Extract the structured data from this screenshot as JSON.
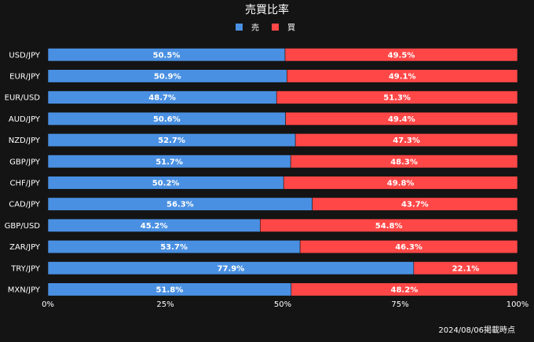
{
  "chart_data": {
    "type": "bar",
    "orientation": "horizontal",
    "stacked": true,
    "title": "売買比率",
    "categories": [
      "USD/JPY",
      "EUR/JPY",
      "EUR/USD",
      "AUD/JPY",
      "NZD/JPY",
      "GBP/JPY",
      "CHF/JPY",
      "CAD/JPY",
      "GBP/USD",
      "ZAR/JPY",
      "TRY/JPY",
      "MXN/JPY"
    ],
    "series": [
      {
        "name": "売",
        "color": "#4a90e2",
        "values": [
          50.5,
          50.9,
          48.7,
          50.6,
          52.7,
          51.7,
          50.2,
          56.3,
          45.2,
          53.7,
          77.9,
          51.8
        ],
        "labels": [
          "50.5%",
          "50.9%",
          "48.7%",
          "50.6%",
          "52.7%",
          "51.7%",
          "50.2%",
          "56.3%",
          "45.2%",
          "53.7%",
          "77.9%",
          "51.8%"
        ]
      },
      {
        "name": "買",
        "color": "#ff4747",
        "values": [
          49.5,
          49.1,
          51.3,
          49.4,
          47.3,
          48.3,
          49.8,
          43.7,
          54.8,
          46.3,
          22.1,
          48.2
        ],
        "labels": [
          "49.5%",
          "49.1%",
          "51.3%",
          "49.4%",
          "47.3%",
          "48.3%",
          "49.8%",
          "43.7%",
          "54.8%",
          "46.3%",
          "22.1%",
          "48.2%"
        ]
      }
    ],
    "xlim": [
      0,
      100
    ],
    "xticks": [
      0,
      25,
      50,
      75,
      100
    ],
    "xtick_labels": [
      "0%",
      "25%",
      "50%",
      "75%",
      "100%"
    ],
    "legend_position": "top-center",
    "grid": false
  },
  "footnote": "2024/08/06掲載時点"
}
